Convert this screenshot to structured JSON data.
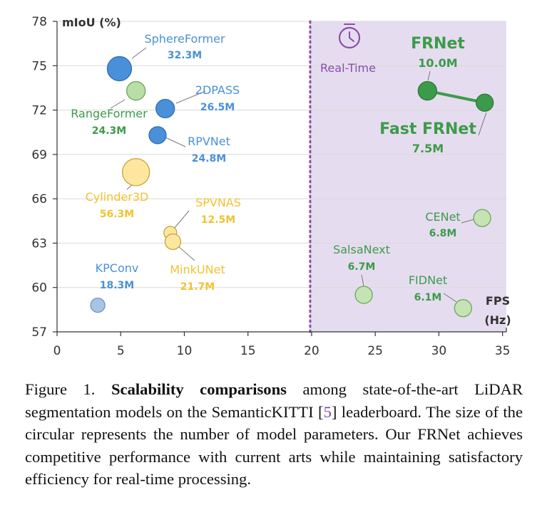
{
  "chart_data": {
    "type": "scatter",
    "ylabel": "mIoU (%)",
    "xlabel_line1": "FPS",
    "xlabel_line2": "(Hz)",
    "xlim": [
      0,
      35.5
    ],
    "ylim": [
      57,
      78
    ],
    "xticks": [
      0,
      5,
      10,
      15,
      20,
      25,
      30,
      35
    ],
    "yticks": [
      57,
      60,
      63,
      66,
      69,
      72,
      75,
      78
    ],
    "realtime_threshold": 20,
    "realtime_label": "Real-Time",
    "realtime_color": "#e6dcef",
    "points": [
      {
        "name": "SphereFormer",
        "params": "32.3M",
        "fps": 4.9,
        "miou": 74.8,
        "color": "#4a90d9",
        "r": 17
      },
      {
        "name": "RangeFormer",
        "params": "24.3M",
        "fps": 6.2,
        "miou": 73.3,
        "color": "#b9dea6",
        "r": 13
      },
      {
        "name": "2DPASS",
        "params": "26.5M",
        "fps": 8.5,
        "miou": 72.1,
        "color": "#4a90d9",
        "r": 13
      },
      {
        "name": "RPVNet",
        "params": "24.8M",
        "fps": 7.9,
        "miou": 70.3,
        "color": "#4a90d9",
        "r": 12
      },
      {
        "name": "Cylinder3D",
        "params": "56.3M",
        "fps": 6.2,
        "miou": 67.8,
        "color": "#fde7a0",
        "r": 19
      },
      {
        "name": "SPVNAS",
        "params": "12.5M",
        "fps": 8.9,
        "miou": 63.7,
        "color": "#fde7a0",
        "r": 9
      },
      {
        "name": "MinkUNet",
        "params": "21.7M",
        "fps": 9.1,
        "miou": 63.1,
        "color": "#fde7a0",
        "r": 11
      },
      {
        "name": "KPConv",
        "params": "18.3M",
        "fps": 3.2,
        "miou": 58.8,
        "color": "#a9c3e6",
        "r": 10
      },
      {
        "name": "SalsaNext",
        "params": "6.7M",
        "fps": 24.1,
        "miou": 59.5,
        "color": "#c5e3b5",
        "r": 12
      },
      {
        "name": "FIDNet",
        "params": "6.1M",
        "fps": 31.9,
        "miou": 58.6,
        "color": "#c5e3b5",
        "r": 12
      },
      {
        "name": "CENet",
        "params": "6.8M",
        "fps": 33.4,
        "miou": 64.7,
        "color": "#c5e3b5",
        "r": 12
      },
      {
        "name": "FRNet",
        "params": "10.0M",
        "fps": 29.1,
        "miou": 73.3,
        "color": "#3c9b4a",
        "r": 13
      },
      {
        "name": "Fast FRNet",
        "params": "7.5M",
        "fps": 33.6,
        "miou": 72.5,
        "color": "#3c9b4a",
        "r": 12
      }
    ]
  },
  "caption": {
    "prefix": "Figure 1. ",
    "bold": "Scalability comparisons",
    "text1": " among state-of-the-art LiDAR segmentation models on the SemanticKITTI [",
    "ref": "5",
    "text2": "] leaderboard. The size of the circular represents the number of model parameters. Our FRNet achieves competitive performance with current arts while maintaining satisfactory efficiency for real-time processing."
  }
}
